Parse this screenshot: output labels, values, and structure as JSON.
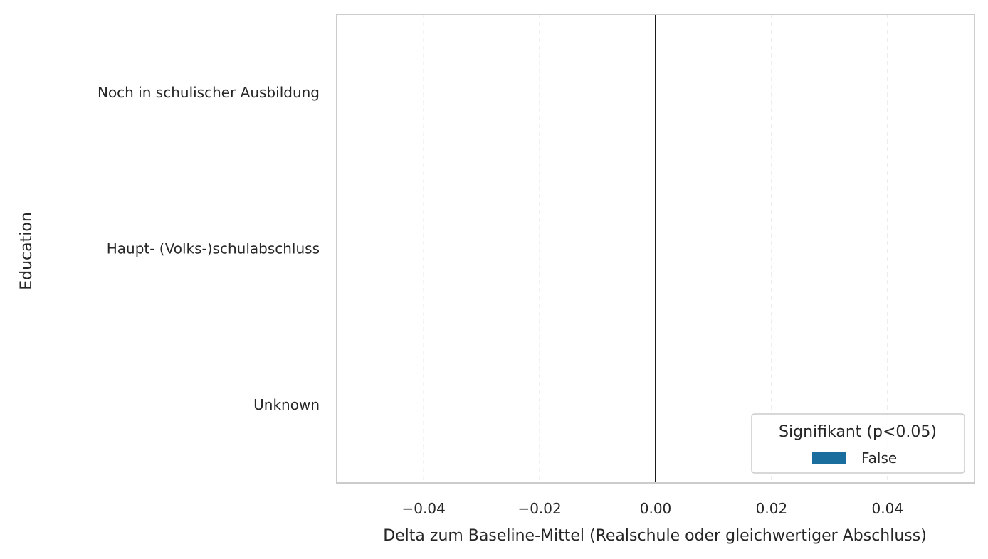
{
  "chart_data": {
    "type": "bar",
    "orientation": "horizontal",
    "categories": [
      "Noch in schulischer Ausbildung",
      "Haupt- (Volks-)schulabschluss",
      "Unknown"
    ],
    "series": [
      {
        "name": "False",
        "values": [
          0,
          0,
          0
        ],
        "color": "#1a6e9e"
      }
    ],
    "xlabel": "Delta zum Baseline-Mittel (Realschule oder gleichwertiger Abschluss)",
    "ylabel": "Education",
    "xlim": [
      -0.055,
      0.055
    ],
    "xticks": [
      -0.04,
      -0.02,
      0.0,
      0.02,
      0.04
    ],
    "xtick_labels": [
      "−0.04",
      "−0.02",
      "0.00",
      "0.02",
      "0.04"
    ],
    "grid": "x dashed",
    "reference_line": 0,
    "legend": {
      "title": "Signifikant (p<0.05)",
      "entries": [
        {
          "label": "False",
          "color": "#1a6e9e"
        }
      ],
      "placement": "lower-right"
    },
    "colors": {
      "frame": "#cccccc",
      "grid": "#ebebeb",
      "zero_line": "#1a1a1a",
      "text": "#262626"
    }
  }
}
